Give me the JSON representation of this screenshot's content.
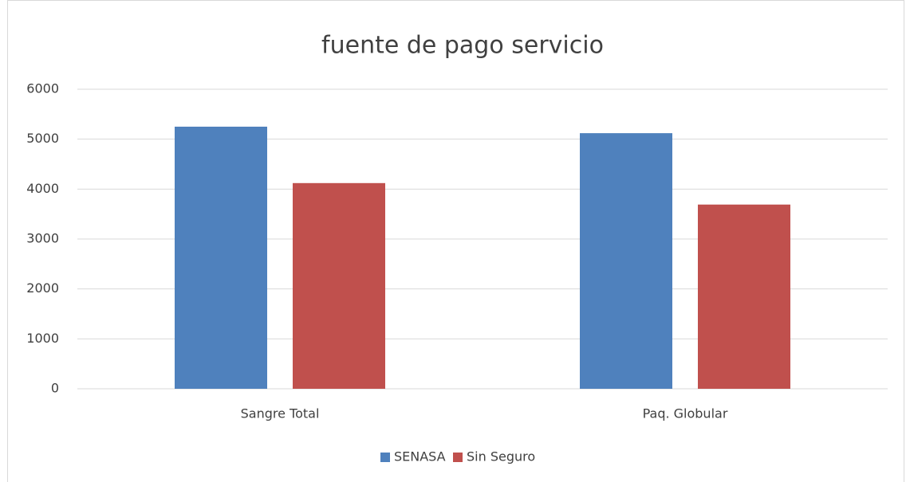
{
  "chart_data": {
    "type": "bar",
    "title": "fuente de pago servicio",
    "categories": [
      "Sangre Total",
      "Paq. Globular"
    ],
    "series": [
      {
        "name": "SENASA",
        "color": "#4f81bd",
        "values": [
          5250,
          5120
        ]
      },
      {
        "name": "Sin Seguro",
        "color": "#c0504d",
        "values": [
          4120,
          3690
        ]
      }
    ],
    "ylim": [
      0,
      6000
    ],
    "yticks": [
      0,
      1000,
      2000,
      3000,
      4000,
      5000,
      6000
    ],
    "grid": true,
    "legend": "bottom"
  }
}
